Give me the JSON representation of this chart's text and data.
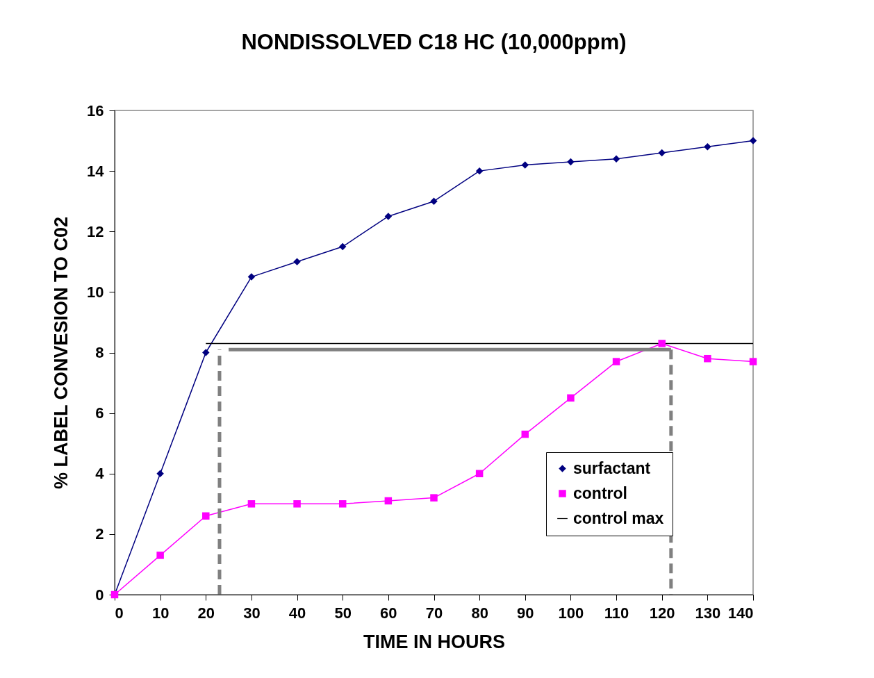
{
  "chart_data": {
    "type": "line",
    "title": "NONDISSOLVED C18 HC (10,000ppm)",
    "xlabel": "TIME IN HOURS",
    "ylabel": "% LABEL CONVESION TO C02",
    "x": [
      0,
      10,
      20,
      30,
      40,
      50,
      60,
      70,
      80,
      90,
      100,
      110,
      120,
      130,
      140
    ],
    "series": [
      {
        "name": "surfactant",
        "color": "#000080",
        "marker": "diamond",
        "values": [
          0,
          4,
          8,
          10.5,
          11,
          11.5,
          12.5,
          13,
          14,
          14.2,
          14.3,
          14.4,
          14.6,
          14.8,
          15
        ]
      },
      {
        "name": "control",
        "color": "#ff00ff",
        "marker": "square",
        "values": [
          0,
          1.3,
          2.6,
          3,
          3,
          3,
          3.1,
          3.2,
          4,
          5.3,
          6.5,
          7.7,
          8.3,
          7.8,
          7.7
        ]
      },
      {
        "name": "control max",
        "color": "#000000",
        "x": [
          20,
          30,
          40,
          50,
          60,
          70,
          80,
          90,
          100,
          110,
          120,
          130,
          140
        ],
        "values": [
          8.3,
          8.3,
          8.3,
          8.3,
          8.3,
          8.3,
          8.3,
          8.3,
          8.3,
          8.3,
          8.3,
          8.3,
          8.3
        ]
      },
      {
        "color": "#808080",
        "line_style": "dashed",
        "x": [
          23,
          23
        ],
        "values": [
          0,
          8.1
        ]
      },
      {
        "color": "#808080",
        "x": [
          25,
          122
        ],
        "values": [
          8.1,
          8.1
        ]
      },
      {
        "color": "#808080",
        "line_style": "dashed",
        "x": [
          122,
          122
        ],
        "values": [
          8.1,
          0
        ]
      }
    ],
    "xlim": [
      0,
      140
    ],
    "xticks": [
      0,
      10,
      20,
      30,
      40,
      50,
      60,
      70,
      80,
      90,
      100,
      110,
      120,
      130,
      140
    ],
    "ylim": [
      0,
      16
    ],
    "yticks": [
      0,
      2,
      4,
      6,
      8,
      10,
      12,
      14,
      16
    ],
    "legend": "bottom right"
  }
}
